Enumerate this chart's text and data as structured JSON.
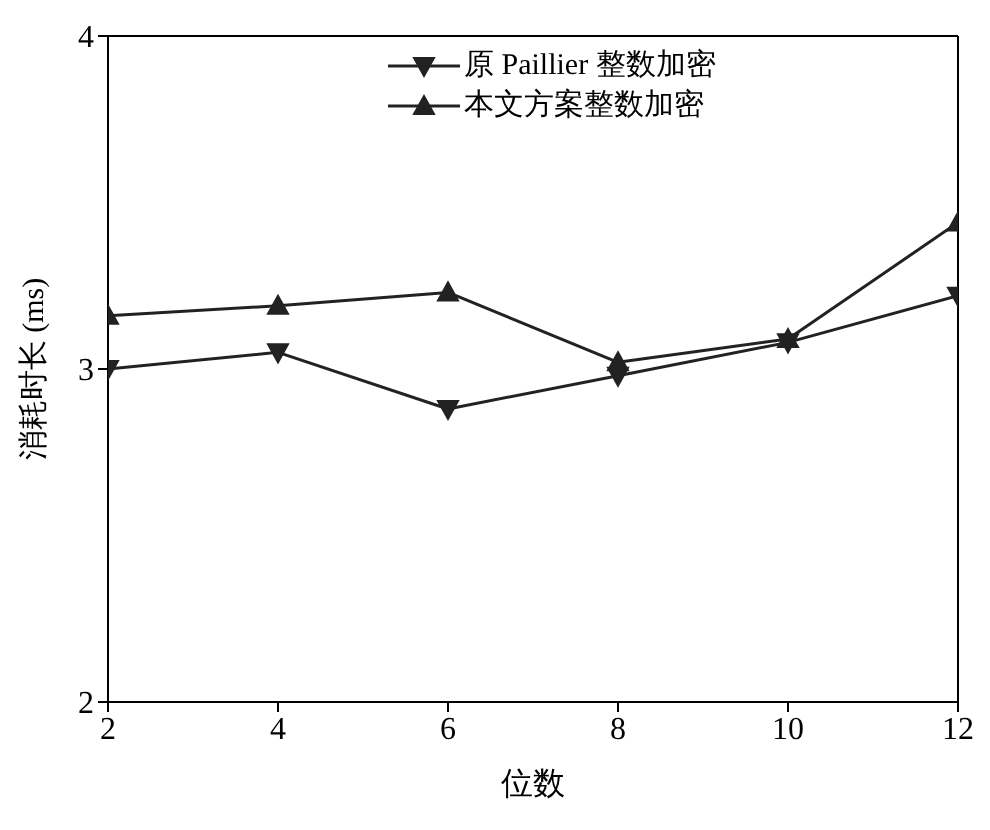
{
  "chart_data": {
    "type": "line",
    "xlabel": "位数",
    "ylabel": "消耗时长 (ms)",
    "x": [
      2,
      4,
      6,
      8,
      10,
      12
    ],
    "xlim": [
      2,
      12
    ],
    "xticks": [
      2,
      4,
      6,
      8,
      10,
      12
    ],
    "ylim": [
      2,
      4
    ],
    "yticks": [
      2,
      3,
      4
    ],
    "legend": "top",
    "grid": false,
    "line_style": "solid",
    "series": [
      {
        "name": "原 Paillier 整数加密",
        "color": "#222222",
        "marker": "triangle-down",
        "values": [
          3.0,
          3.05,
          2.88,
          2.98,
          3.08,
          3.22
        ]
      },
      {
        "name": "本文方案整数加密",
        "color": "#222222",
        "marker": "triangle",
        "values": [
          3.16,
          3.19,
          3.23,
          3.02,
          3.09,
          3.44
        ]
      }
    ]
  }
}
